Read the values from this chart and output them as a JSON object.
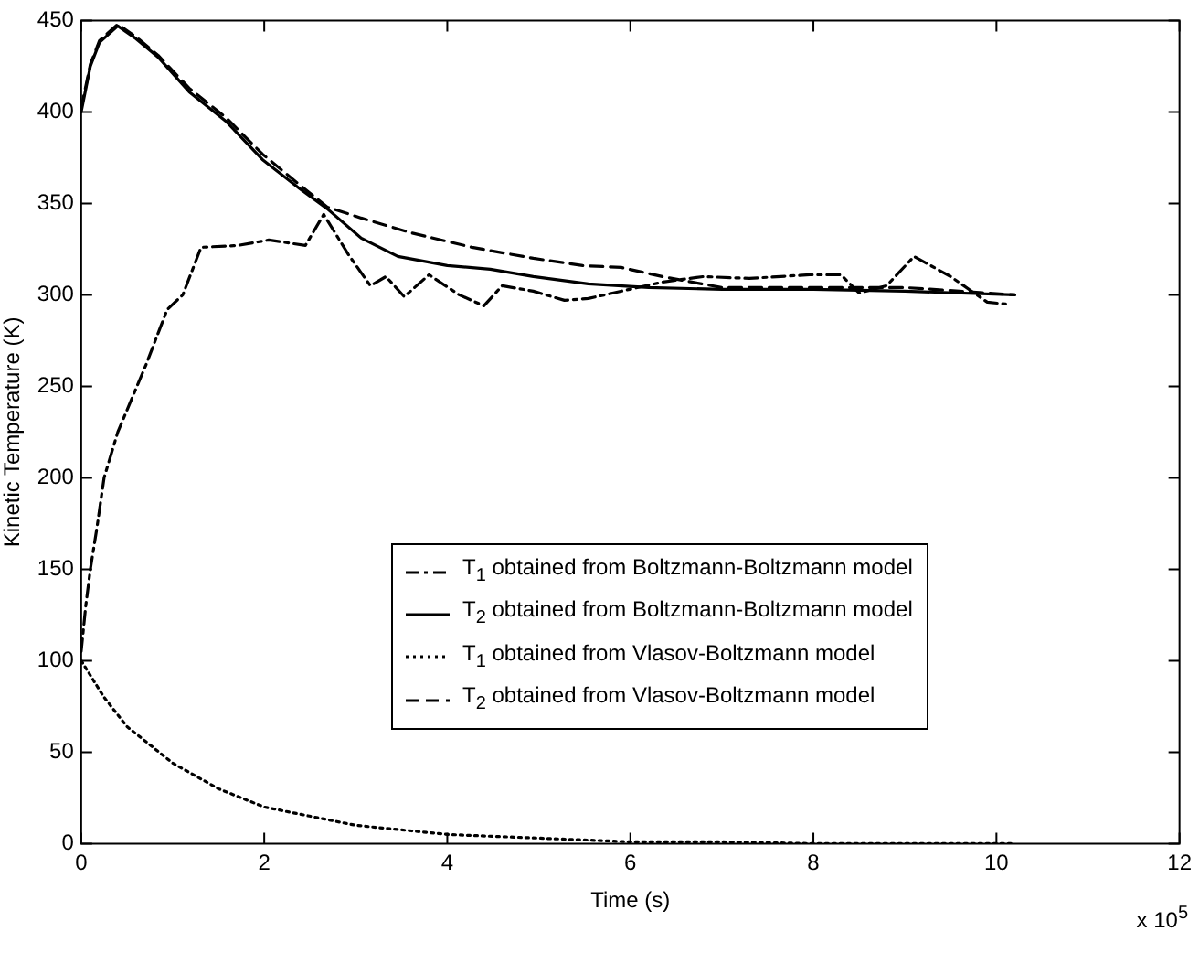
{
  "chart_data": {
    "type": "line",
    "xlabel": "Time (s)",
    "ylabel": "Kinetic Temperature (K)",
    "xlim": [
      0,
      12
    ],
    "xticks": [
      0,
      2,
      4,
      6,
      8,
      10,
      12
    ],
    "ylim": [
      0,
      450
    ],
    "yticks": [
      0,
      50,
      100,
      150,
      200,
      250,
      300,
      350,
      400,
      450
    ],
    "legend": "bottom",
    "marker": "none",
    "annotations": [
      "x 10$^{5}$"
    ],
    "series": [
      {
        "name": "T$_{1}$ obtained from Boltzmann-Boltzmann model",
        "color": "#000000",
        "line_style": "dashdot",
        "x": [
          0,
          0.05,
          0.1,
          0.17,
          0.25,
          0.4,
          0.71,
          0.94,
          1.11,
          1.31,
          1.71,
          2.05,
          2.45,
          2.65,
          2.92,
          3.16,
          3.33,
          3.53,
          3.8,
          4.13,
          4.4,
          4.6,
          4.94,
          5.28,
          5.54,
          6.35,
          6.8,
          7.3,
          7.96,
          8.3,
          8.5,
          8.8,
          9.1,
          9.5,
          9.9,
          10.1
        ],
        "values": [
          105,
          130,
          150,
          172,
          200,
          225,
          262,
          292,
          300,
          326,
          327,
          330,
          327,
          344,
          322,
          305,
          310,
          299,
          311,
          300,
          294,
          305,
          302,
          297,
          298,
          307,
          310,
          309,
          311,
          311,
          301,
          305,
          321,
          310,
          296,
          295
        ]
      },
      {
        "name": "T$_{2}$ obtained from Boltzmann-Boltzmann model",
        "color": "#000000",
        "line_style": "solid",
        "x": [
          0,
          0.1,
          0.2,
          0.4,
          0.6,
          0.84,
          1.18,
          1.58,
          1.98,
          2.39,
          2.69,
          3.06,
          3.46,
          4.0,
          4.47,
          4.94,
          5.54,
          6.2,
          7.0,
          8.0,
          9.0,
          10.2
        ],
        "values": [
          400,
          425,
          438,
          447,
          440,
          430,
          411,
          395,
          374,
          358,
          347,
          331,
          321,
          316,
          314,
          310,
          306,
          304,
          303,
          303,
          302,
          300
        ]
      },
      {
        "name": "T$_{1}$ obtained from Vlasov-Boltzmann model",
        "color": "#000000",
        "line_style": "dotted",
        "x": [
          0,
          0.25,
          0.5,
          1,
          1.5,
          2,
          3,
          4,
          5,
          6,
          7,
          8,
          10.2
        ],
        "values": [
          100,
          80,
          64,
          44,
          30,
          20,
          10,
          5,
          3,
          1,
          1,
          0,
          0
        ]
      },
      {
        "name": "T$_{2}$ obtained from Vlasov-Boltzmann model",
        "color": "#000000",
        "line_style": "dashed",
        "x": [
          0,
          0.1,
          0.2,
          0.4,
          0.6,
          0.84,
          1.18,
          1.58,
          1.98,
          2.39,
          2.69,
          3.06,
          3.6,
          4.27,
          4.94,
          5.48,
          5.9,
          6.35,
          7.0,
          8.0,
          9.0,
          10.2
        ],
        "values": [
          402,
          426,
          439,
          448,
          441,
          431,
          413,
          397,
          377,
          360,
          348,
          342,
          334,
          326,
          320,
          316,
          315,
          310,
          304,
          304,
          304,
          300
        ]
      }
    ]
  }
}
